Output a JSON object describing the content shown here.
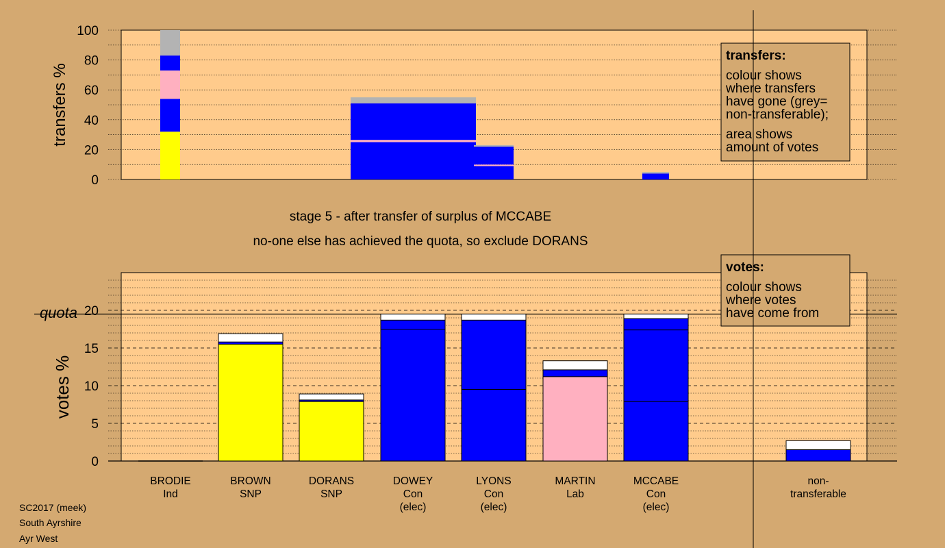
{
  "colors": {
    "page_bg": "#d4a971",
    "plot_bg": "#ffcb8c",
    "yellow": "#ffff00",
    "blue": "#0000ff",
    "pink": "#ffb0c0",
    "grey": "#b3b3b3",
    "white": "#ffffff"
  },
  "stage_lines": [
    "stage 5 - after transfer of surplus of MCCABE",
    "no-one else has achieved the quota, so exclude DORANS"
  ],
  "footer": [
    "SC2017 (meek)",
    "South Ayrshire",
    "Ayr West"
  ],
  "transfers_legend": {
    "title": "transfers:",
    "lines": [
      "colour shows",
      "where transfers",
      "have gone (grey=",
      "non-transferable);"
    ],
    "lines2": [
      "area shows",
      "amount of votes"
    ]
  },
  "votes_legend": {
    "title": "votes:",
    "lines": [
      "colour shows",
      "where votes",
      "have come from"
    ]
  },
  "chart_data": [
    {
      "type": "bar",
      "title": "transfers",
      "ylabel": "transfers %",
      "ylim": [
        0,
        100
      ],
      "yticks": [
        0,
        20,
        40,
        60,
        80,
        100
      ],
      "grid": true,
      "note": "variable-width stacked bars; width proportional to votes transferred",
      "bars": [
        {
          "from": "MARTIN",
          "segments": [
            {
              "color": "yellow",
              "from_pct": 0,
              "to_pct": 32
            },
            {
              "color": "blue",
              "from_pct": 32,
              "to_pct": 54
            },
            {
              "color": "pink",
              "from_pct": 54,
              "to_pct": 73
            },
            {
              "color": "blue",
              "from_pct": 73,
              "to_pct": 83
            },
            {
              "color": "grey",
              "from_pct": 83,
              "to_pct": 100
            }
          ]
        },
        {
          "from": "MCCABE",
          "segments": [
            {
              "color": "blue",
              "from_pct": 0,
              "to_pct": 25
            },
            {
              "color": "pink",
              "from_pct": 25,
              "to_pct": 26.5
            },
            {
              "color": "blue",
              "from_pct": 26.5,
              "to_pct": 51
            },
            {
              "color": "grey",
              "from_pct": 51,
              "to_pct": 55
            }
          ]
        },
        {
          "from": "DOWEY",
          "segments": [
            {
              "color": "blue",
              "from_pct": 0,
              "to_pct": 9
            },
            {
              "color": "pink",
              "from_pct": 9,
              "to_pct": 10
            },
            {
              "color": "blue",
              "from_pct": 10,
              "to_pct": 22
            },
            {
              "color": "grey",
              "from_pct": 22,
              "to_pct": 23
            }
          ]
        },
        {
          "from": "LYONS",
          "segments": [
            {
              "color": "blue",
              "from_pct": 0,
              "to_pct": 4
            },
            {
              "color": "grey",
              "from_pct": 4,
              "to_pct": 5
            }
          ]
        }
      ]
    },
    {
      "type": "bar",
      "title": "votes",
      "ylabel": "votes %",
      "ylim": [
        0,
        25
      ],
      "yticks": [
        0,
        5,
        10,
        15,
        20
      ],
      "quota": 19.5,
      "quota_label": "quota",
      "grid": true,
      "candidates": [
        {
          "name": "BRODIE",
          "party": "Ind",
          "status": "",
          "segments": []
        },
        {
          "name": "BROWN",
          "party": "SNP",
          "status": "",
          "segments": [
            {
              "color": "yellow",
              "value": 15.5
            },
            {
              "color": "blue",
              "value": 0.3
            },
            {
              "color": "white",
              "value": 1.1
            }
          ]
        },
        {
          "name": "DORANS",
          "party": "SNP",
          "status": "",
          "segments": [
            {
              "color": "yellow",
              "value": 7.9
            },
            {
              "color": "blue",
              "value": 0.2
            },
            {
              "color": "white",
              "value": 0.8
            }
          ]
        },
        {
          "name": "DOWEY",
          "party": "Con",
          "status": "(elec)",
          "segments": [
            {
              "color": "blue",
              "value": 17.5
            },
            {
              "color": "blue",
              "value": 1.2
            },
            {
              "color": "white",
              "value": 0.8
            }
          ]
        },
        {
          "name": "LYONS",
          "party": "Con",
          "status": "(elec)",
          "segments": [
            {
              "color": "blue",
              "value": 9.5
            },
            {
              "color": "blue",
              "value": 9.2
            },
            {
              "color": "white",
              "value": 0.8
            }
          ]
        },
        {
          "name": "MARTIN",
          "party": "Lab",
          "status": "",
          "segments": [
            {
              "color": "pink",
              "value": 11.2
            },
            {
              "color": "blue",
              "value": 0.9
            },
            {
              "color": "white",
              "value": 1.2
            }
          ]
        },
        {
          "name": "MCCABE",
          "party": "Con",
          "status": "(elec)",
          "segments": [
            {
              "color": "blue",
              "value": 7.9
            },
            {
              "color": "blue",
              "value": 9.5
            },
            {
              "color": "blue",
              "value": 1.5
            },
            {
              "color": "white",
              "value": 0.6
            }
          ]
        },
        {
          "name": "non-",
          "party": "transferable",
          "status": "",
          "segments": [
            {
              "color": "blue",
              "value": 1.5
            },
            {
              "color": "white",
              "value": 1.2
            }
          ]
        }
      ]
    }
  ]
}
